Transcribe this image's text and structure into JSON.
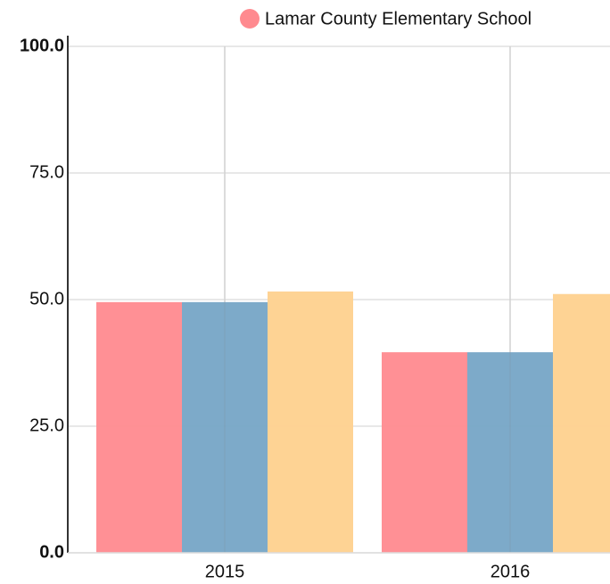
{
  "chart_data": {
    "type": "bar",
    "categories": [
      "2015",
      "2016"
    ],
    "series": [
      {
        "name": "Lamar County Elementary School",
        "color": "#ff8a8f",
        "values": [
          49.5,
          39.6
        ]
      },
      {
        "color": "#76a5c6",
        "values": [
          49.5,
          39.6
        ]
      },
      {
        "color": "#fed18e",
        "values": [
          51.6,
          51.1
        ]
      }
    ],
    "ylim": [
      0,
      100
    ],
    "yticks": [
      {
        "value": 0,
        "label": "0.0"
      },
      {
        "value": 25,
        "label": "25.0"
      },
      {
        "value": 50,
        "label": "50.0"
      },
      {
        "value": 75,
        "label": "75.0"
      },
      {
        "value": 100,
        "label": "100.0"
      }
    ],
    "grid": true
  }
}
